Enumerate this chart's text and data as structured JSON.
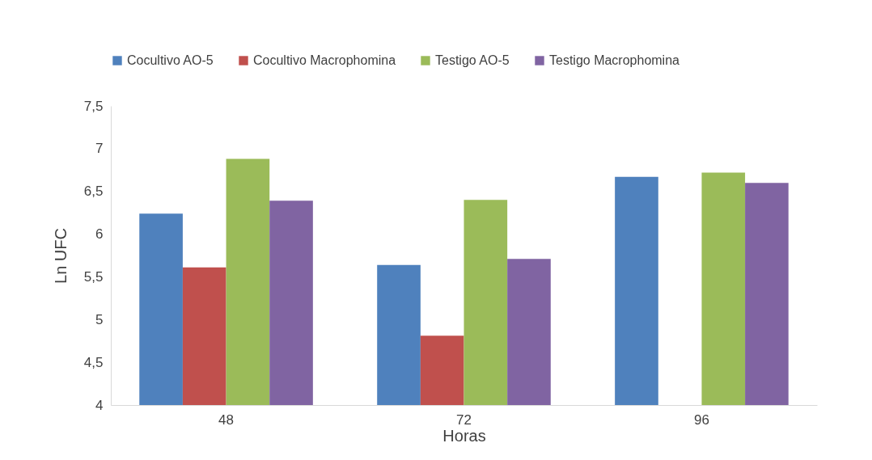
{
  "chart_data": {
    "type": "bar",
    "xlabel": "Horas",
    "ylabel": "Ln UFC",
    "categories": [
      "48",
      "72",
      "96"
    ],
    "series": [
      {
        "name": "Cocultivo AO-5",
        "color": "#4f81bd",
        "values": [
          6.24,
          5.64,
          6.67
        ]
      },
      {
        "name": "Cocultivo Macrophomina",
        "color": "#c0504d",
        "values": [
          5.61,
          4.81,
          null
        ]
      },
      {
        "name": "Testigo AO-5",
        "color": "#9bbb59",
        "values": [
          6.88,
          6.4,
          6.72
        ]
      },
      {
        "name": "Testigo Macrophomina",
        "color": "#8064a2",
        "values": [
          6.39,
          5.71,
          6.6
        ]
      }
    ],
    "ylim": [
      4,
      7.5
    ],
    "yticks": [
      4,
      {
        "value": 4.5,
        "label": "4,5"
      },
      5,
      {
        "value": 5.5,
        "label": "5,5"
      },
      6,
      {
        "value": 6.5,
        "label": "6,5"
      },
      7,
      {
        "value": 7.5,
        "label": "7,5"
      }
    ],
    "grid": false,
    "legend": "top"
  }
}
